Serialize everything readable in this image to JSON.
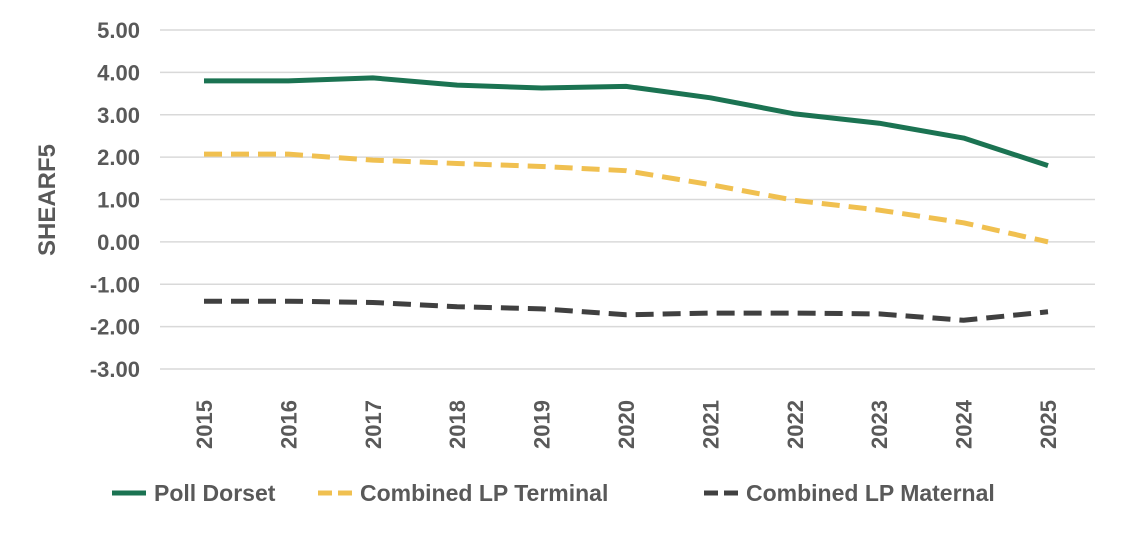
{
  "chart_data": {
    "type": "line",
    "title": "",
    "xlabel": "",
    "ylabel": "SHEARF5",
    "ylim": [
      -3,
      5
    ],
    "ytick_labels": [
      "5.00",
      "4.00",
      "3.00",
      "2.00",
      "1.00",
      "0.00",
      "-1.00",
      "-2.00",
      "-3.00"
    ],
    "grid": true,
    "legend_position": "bottom",
    "x": [
      "2015",
      "2016",
      "2017",
      "2018",
      "2019",
      "2020",
      "2021",
      "2022",
      "2023",
      "2024",
      "2025"
    ],
    "series": [
      {
        "name": "Poll Dorset",
        "color": "#1b7352",
        "style": "solid",
        "values": [
          3.8,
          3.8,
          3.87,
          3.7,
          3.63,
          3.67,
          3.4,
          3.02,
          2.8,
          2.45,
          1.8
        ]
      },
      {
        "name": "Combined LP Terminal",
        "color": "#f0c050",
        "style": "dashed",
        "values": [
          2.07,
          2.07,
          1.93,
          1.85,
          1.78,
          1.68,
          1.35,
          0.98,
          0.75,
          0.45,
          0.0
        ]
      },
      {
        "name": "Combined LP Maternal",
        "color": "#404040",
        "style": "dashed",
        "values": [
          -1.4,
          -1.4,
          -1.43,
          -1.53,
          -1.58,
          -1.72,
          -1.68,
          -1.68,
          -1.7,
          -1.85,
          -1.65
        ]
      }
    ]
  }
}
